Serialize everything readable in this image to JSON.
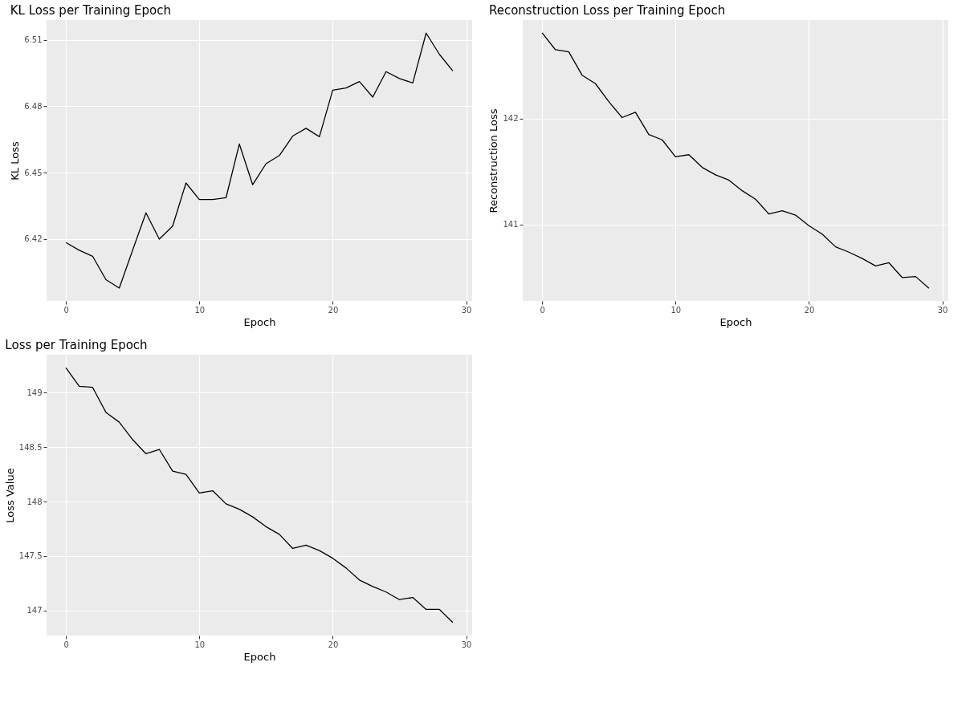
{
  "chart_data": [
    {
      "type": "line",
      "title": "KL Loss per Training Epoch",
      "xlabel": "Epoch",
      "ylabel": "KL Loss",
      "x": [
        0,
        1,
        2,
        3,
        4,
        5,
        6,
        7,
        8,
        9,
        10,
        11,
        12,
        13,
        14,
        15,
        16,
        17,
        18,
        19,
        20,
        21,
        22,
        23,
        24,
        25,
        26,
        27,
        28,
        29
      ],
      "series": [
        {
          "color": "#000000",
          "values": [
            6.4184,
            6.4149,
            6.4122,
            6.4016,
            6.3978,
            6.4149,
            6.4318,
            6.4199,
            6.4258,
            6.4453,
            6.4378,
            6.4378,
            6.4386,
            6.4629,
            6.4445,
            6.454,
            6.4577,
            6.4665,
            6.47,
            6.4662,
            6.4872,
            6.4882,
            6.4911,
            6.4841,
            6.4956,
            6.4925,
            6.4905,
            6.513,
            6.5034,
            6.4959
          ]
        }
      ],
      "xlim": [
        -1.45,
        30.45
      ],
      "xticks": [
        0,
        10,
        20,
        30
      ],
      "ylim": [
        6.392,
        6.5189
      ],
      "yticks": [
        6.42,
        6.45,
        6.48,
        6.51
      ],
      "grid": true,
      "marker": "none",
      "line_style": "solid"
    },
    {
      "type": "line",
      "title": "Reconstruction Loss per Training Epoch",
      "xlabel": "Epoch",
      "ylabel": "Reconstruction Loss",
      "x": [
        0,
        1,
        2,
        3,
        4,
        5,
        6,
        7,
        8,
        9,
        10,
        11,
        12,
        13,
        14,
        15,
        16,
        17,
        18,
        19,
        20,
        21,
        22,
        23,
        24,
        25,
        26,
        27,
        28,
        29
      ],
      "series": [
        {
          "color": "#000000",
          "values": [
            142.81,
            142.65,
            142.63,
            142.41,
            142.33,
            142.16,
            142.01,
            142.06,
            141.85,
            141.8,
            141.64,
            141.66,
            141.54,
            141.47,
            141.42,
            141.32,
            141.24,
            141.1,
            141.13,
            141.09,
            140.99,
            140.91,
            140.79,
            140.74,
            140.68,
            140.61,
            140.64,
            140.5,
            140.51,
            140.4
          ]
        }
      ],
      "xlim": [
        -1.45,
        30.45
      ],
      "xticks": [
        0,
        10,
        20,
        30
      ],
      "ylim": [
        140.28,
        142.93
      ],
      "yticks": [
        141,
        142
      ],
      "grid": true,
      "marker": "none",
      "line_style": "solid"
    },
    {
      "type": "line",
      "title": "Loss per Training Epoch",
      "xlabel": "Epoch",
      "ylabel": "Loss Value",
      "x": [
        0,
        1,
        2,
        3,
        4,
        5,
        6,
        7,
        8,
        9,
        10,
        11,
        12,
        13,
        14,
        15,
        16,
        17,
        18,
        19,
        20,
        21,
        22,
        23,
        24,
        25,
        26,
        27,
        28,
        29
      ],
      "series": [
        {
          "color": "#000000",
          "values": [
            149.23,
            149.06,
            149.05,
            148.82,
            148.73,
            148.57,
            148.44,
            148.48,
            148.28,
            148.25,
            148.08,
            148.1,
            147.98,
            147.93,
            147.86,
            147.77,
            147.7,
            147.57,
            147.6,
            147.55,
            147.48,
            147.39,
            147.28,
            147.22,
            147.17,
            147.1,
            147.12,
            147.01,
            147.01,
            146.89
          ]
        }
      ],
      "xlim": [
        -1.45,
        30.45
      ],
      "xticks": [
        0,
        10,
        20,
        30
      ],
      "ylim": [
        146.77,
        149.35
      ],
      "yticks": [
        147,
        147.5,
        148,
        148.5,
        149
      ],
      "grid": true,
      "marker": "none",
      "line_style": "solid"
    }
  ]
}
